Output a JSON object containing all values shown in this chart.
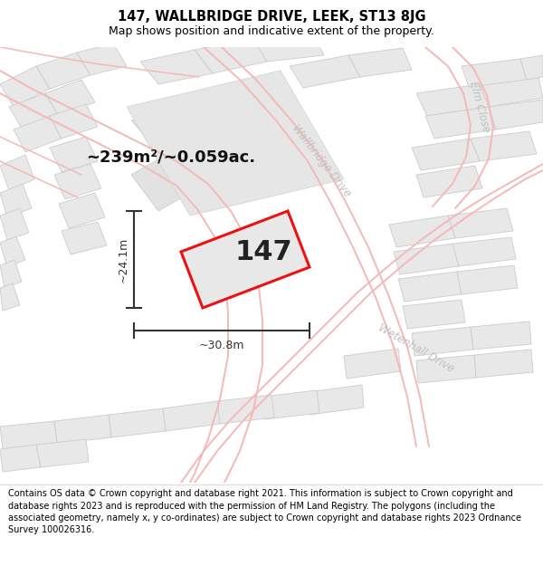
{
  "title": "147, WALLBRIDGE DRIVE, LEEK, ST13 8JG",
  "subtitle": "Map shows position and indicative extent of the property.",
  "footer": "Contains OS data © Crown copyright and database right 2021. This information is subject to Crown copyright and database rights 2023 and is reproduced with the permission of HM Land Registry. The polygons (including the associated geometry, namely x, y co-ordinates) are subject to Crown copyright and database rights 2023 Ordnance Survey 100026316.",
  "area_text": "~239m²/~0.059ac.",
  "label_147": "147",
  "dim_width": "~30.8m",
  "dim_height": "~24.1m",
  "map_bg": "#f7f7f7",
  "block_fill": "#e8e8e8",
  "block_edge": "#cccccc",
  "road_line_color": "#f5b8b8",
  "plot_fill": "#e8e8e8",
  "plot_stroke": "#ee1111",
  "title_color": "#000000",
  "dim_color": "#333333",
  "street_label_color": "#c0c0c0",
  "header_bg": "#ffffff",
  "footer_bg": "#ffffff",
  "title_fontsize": 10.5,
  "subtitle_fontsize": 9,
  "footer_fontsize": 7,
  "area_fontsize": 13,
  "num_fontsize": 22,
  "dim_fontsize": 9,
  "street_fontsize": 8.5
}
